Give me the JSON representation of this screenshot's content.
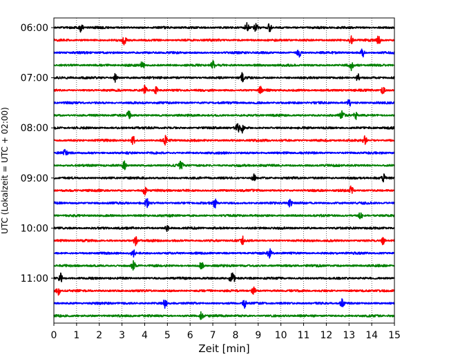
{
  "chart_data": {
    "type": "line",
    "title": "",
    "xlabel": "Zeit  [min]",
    "ylabel": "UTC (Lokalzeit = UTC + 02:00)",
    "xlim": [
      0,
      15
    ],
    "x_ticks": [
      0,
      1,
      2,
      3,
      4,
      5,
      6,
      7,
      8,
      9,
      10,
      11,
      12,
      13,
      14,
      15
    ],
    "x_tick_labels": [
      "0",
      "1",
      "2",
      "3",
      "4",
      "5",
      "6",
      "7",
      "8",
      "9",
      "10",
      "11",
      "12",
      "13",
      "14",
      "15"
    ],
    "grid": "vertical dotted lines at each minute",
    "y_tick_labels": [
      "06:00",
      "07:00",
      "08:00",
      "09:00",
      "10:00",
      "11:00"
    ],
    "trace_interval_minutes": 15,
    "trace_start": "06:00",
    "trace_count": 24,
    "trace_colors": [
      "#000000",
      "#ff0000",
      "#0000ff",
      "#008000"
    ],
    "series": [
      {
        "start": "06:00",
        "color": "#000000",
        "events_min": [
          1.2,
          8.5,
          8.9,
          9.5
        ]
      },
      {
        "start": "06:15",
        "color": "#ff0000",
        "events_min": [
          3.1,
          13.1,
          14.3
        ]
      },
      {
        "start": "06:30",
        "color": "#0000ff",
        "events_min": [
          10.8,
          13.6
        ]
      },
      {
        "start": "06:45",
        "color": "#008000",
        "events_min": [
          3.9,
          7.0,
          13.1
        ]
      },
      {
        "start": "07:00",
        "color": "#000000",
        "events_min": [
          2.7,
          8.3,
          13.4
        ]
      },
      {
        "start": "07:15",
        "color": "#ff0000",
        "events_min": [
          4.0,
          4.5,
          9.1,
          14.5
        ]
      },
      {
        "start": "07:30",
        "color": "#0000ff",
        "events_min": [
          13.0
        ]
      },
      {
        "start": "07:45",
        "color": "#008000",
        "events_min": [
          3.3,
          12.7,
          13.3
        ]
      },
      {
        "start": "08:00",
        "color": "#000000",
        "events_min": [
          8.1,
          8.3
        ]
      },
      {
        "start": "08:15",
        "color": "#ff0000",
        "events_min": [
          3.5,
          4.9,
          13.7
        ]
      },
      {
        "start": "08:30",
        "color": "#0000ff",
        "events_min": [
          0.5
        ]
      },
      {
        "start": "08:45",
        "color": "#008000",
        "events_min": [
          3.1,
          5.6
        ]
      },
      {
        "start": "09:00",
        "color": "#000000",
        "events_min": [
          8.8,
          14.5
        ]
      },
      {
        "start": "09:15",
        "color": "#ff0000",
        "events_min": [
          4.0,
          13.1
        ]
      },
      {
        "start": "09:30",
        "color": "#0000ff",
        "events_min": [
          4.1,
          7.1,
          10.4
        ]
      },
      {
        "start": "09:45",
        "color": "#008000",
        "events_min": [
          13.5
        ]
      },
      {
        "start": "10:00",
        "color": "#000000",
        "events_min": [
          5.0
        ]
      },
      {
        "start": "10:15",
        "color": "#ff0000",
        "events_min": [
          3.6,
          8.3,
          14.5
        ]
      },
      {
        "start": "10:30",
        "color": "#0000ff",
        "events_min": [
          3.5,
          9.5
        ]
      },
      {
        "start": "10:45",
        "color": "#008000",
        "events_min": [
          3.5,
          6.5
        ]
      },
      {
        "start": "11:00",
        "color": "#000000",
        "events_min": [
          0.3,
          7.8,
          7.9
        ]
      },
      {
        "start": "11:15",
        "color": "#ff0000",
        "events_min": [
          0.2,
          8.8
        ]
      },
      {
        "start": "11:30",
        "color": "#0000ff",
        "events_min": [
          4.9,
          8.4,
          12.7
        ]
      },
      {
        "start": "11:45",
        "color": "#008000",
        "events_min": [
          6.5
        ]
      }
    ]
  }
}
